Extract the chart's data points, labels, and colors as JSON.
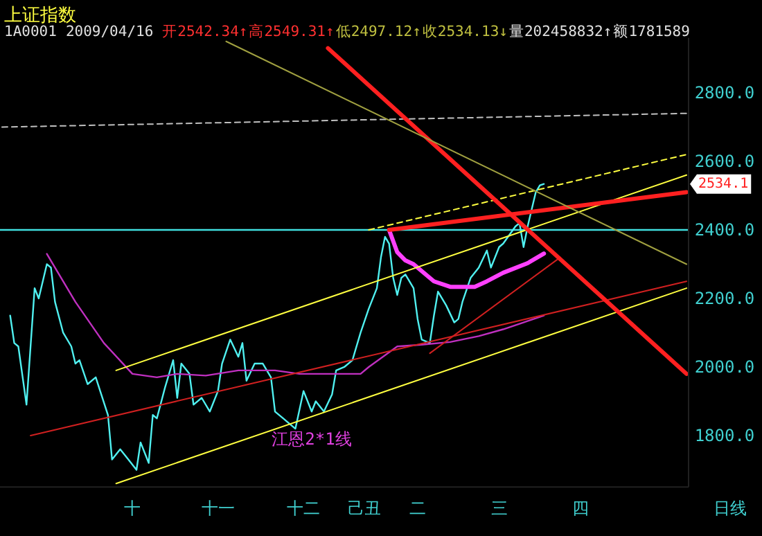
{
  "chart_data": {
    "type": "line",
    "title": "上证指数",
    "annotations": [
      "1A0001",
      "2009/04/16",
      "开2542.34↑",
      "高2549.31↑",
      "低2497.12↑",
      "收2534.13↓",
      "量202458832↑",
      "额1781589",
      "日线",
      "江恩2*1线",
      "2534.1"
    ],
    "categories": [
      null,
      null,
      null,
      null,
      null,
      null,
      null,
      null,
      null,
      null,
      null,
      null,
      null,
      null,
      null,
      null,
      null,
      null,
      null,
      null,
      null,
      null,
      null,
      null,
      null,
      null,
      null,
      null,
      null,
      null,
      null,
      null,
      "十",
      null,
      null,
      null,
      null,
      null,
      null,
      null,
      null,
      null,
      null,
      null,
      null,
      null,
      null,
      null,
      null,
      null,
      null,
      null,
      null,
      "十一",
      null,
      null,
      null,
      null,
      null,
      null,
      null,
      null,
      null,
      null,
      null,
      null,
      null,
      null,
      null,
      null,
      null,
      null,
      null,
      null,
      "十二",
      null,
      null,
      null,
      null,
      null,
      null,
      null,
      null,
      null,
      null,
      null,
      null,
      null,
      null,
      "己丑",
      null,
      null,
      null,
      null,
      null,
      null,
      null,
      null,
      null,
      null,
      null,
      null,
      "二",
      null,
      null,
      null,
      null,
      null,
      null,
      null,
      null,
      null,
      null,
      null,
      null,
      null,
      null,
      null,
      null,
      null,
      null,
      null,
      "三",
      null,
      null,
      null,
      null,
      null,
      null,
      null,
      null,
      null,
      null,
      null,
      null,
      null,
      null,
      null,
      null,
      null,
      null,
      null,
      "四",
      null,
      null,
      null,
      null,
      null,
      null,
      null,
      null,
      null,
      null,
      null,
      null,
      null,
      null,
      null,
      null,
      null,
      null,
      null,
      null,
      null,
      null,
      null,
      null,
      null,
      null
    ],
    "ylim": [
      1650,
      2960
    ],
    "yticks": [
      {
        "value": 1800,
        "label": "1800.0"
      },
      {
        "value": 2000,
        "label": "2000.0"
      },
      {
        "value": 2200,
        "label": "2200.0"
      },
      {
        "value": 2400,
        "label": "2400.0"
      },
      {
        "value": 2600,
        "label": "2600.0"
      },
      {
        "value": 2800,
        "label": "2800.0"
      }
    ],
    "ref_lines": [
      {
        "axis": "y",
        "value": 2400,
        "color": "#40e0e0"
      }
    ],
    "series": [
      {
        "type": "line",
        "color": "#50f0f0",
        "values": [
          null,
          null,
          2150,
          2070,
          2060,
          null,
          1890,
          null,
          2230,
          2200,
          null,
          2300,
          2290,
          2190,
          null,
          2100,
          null,
          2060,
          2010,
          2020,
          null,
          1950,
          null,
          1970,
          null,
          null,
          1860,
          1730,
          null,
          1760,
          null,
          1730,
          null,
          1700,
          1780,
          null,
          1720,
          1860,
          1850,
          null,
          1940,
          null,
          2020,
          1910,
          2010,
          null,
          1980,
          1890,
          null,
          1910,
          null,
          1870,
          null,
          1930,
          2010,
          null,
          2080,
          null,
          2030,
          2070,
          1960,
          null,
          2010,
          null,
          2010,
          null,
          1970,
          1870,
          null,
          1850,
          null,
          null,
          1820,
          null,
          1930,
          null,
          1870,
          1900,
          null,
          1870,
          null,
          1920,
          1990,
          null,
          2000,
          null,
          2020,
          null,
          2100,
          null,
          2170,
          null,
          2230,
          2320,
          2380,
          2360,
          2260,
          2210,
          2260,
          2270,
          null,
          2230,
          2140,
          2080,
          null,
          2070,
          2150,
          2220,
          null,
          2180,
          null,
          2130,
          2140,
          2190,
          null,
          2260,
          null,
          2290,
          null,
          2340,
          2290,
          null,
          2350,
          2360,
          null,
          null,
          2410,
          2420,
          2350,
          2410,
          null,
          2510,
          2530,
          2534,
          null,
          null,
          null,
          null,
          null,
          null,
          null,
          null,
          null,
          null,
          null,
          null,
          null,
          null,
          null,
          null,
          null,
          null,
          null,
          null,
          null,
          null,
          null,
          null,
          null,
          null,
          null,
          null,
          null,
          null,
          null,
          null,
          null,
          null,
          null
        ]
      },
      {
        "type": "line",
        "color": "#c030c0",
        "values": [
          null,
          null,
          null,
          null,
          null,
          null,
          null,
          null,
          null,
          null,
          null,
          2330,
          null,
          null,
          null,
          null,
          null,
          null,
          2190,
          null,
          null,
          null,
          null,
          null,
          null,
          2070,
          null,
          null,
          null,
          null,
          null,
          null,
          1980,
          null,
          null,
          null,
          null,
          null,
          1970,
          null,
          null,
          null,
          null,
          1980,
          null,
          null,
          null,
          null,
          null,
          null,
          1975,
          null,
          null,
          null,
          null,
          null,
          null,
          null,
          1990,
          null,
          null,
          null,
          null,
          null,
          null,
          null,
          null,
          1990,
          null,
          null,
          null,
          null,
          null,
          1980,
          null,
          null,
          null,
          null,
          null,
          null,
          null,
          null,
          null,
          1980,
          null,
          null,
          null,
          null,
          1980,
          null,
          2000,
          null,
          null,
          null,
          null,
          null,
          null,
          2060,
          null,
          null,
          null,
          null,
          null,
          2065,
          null,
          null,
          null,
          null,
          null,
          null,
          2073,
          null,
          null,
          null,
          null,
          null,
          null,
          2090,
          null,
          null,
          null,
          null,
          null,
          2110,
          null,
          null,
          null,
          null,
          2130,
          null,
          null,
          null,
          null,
          2150,
          null,
          null,
          null,
          null,
          null,
          null,
          null,
          null,
          null,
          null,
          null,
          null,
          null,
          null,
          null,
          null,
          null,
          null,
          null,
          null,
          null,
          null,
          null,
          null,
          null,
          null,
          null,
          null,
          null,
          null,
          null,
          null,
          null,
          null,
          null
        ]
      },
      {
        "type": "line",
        "color": "#ff40ff",
        "values": [
          null,
          null,
          null,
          null,
          null,
          null,
          null,
          null,
          null,
          null,
          null,
          null,
          null,
          null,
          null,
          null,
          null,
          null,
          null,
          null,
          null,
          null,
          null,
          null,
          null,
          null,
          null,
          null,
          null,
          null,
          null,
          null,
          null,
          null,
          null,
          null,
          null,
          null,
          null,
          null,
          null,
          null,
          null,
          null,
          null,
          null,
          null,
          null,
          null,
          null,
          null,
          null,
          null,
          null,
          null,
          null,
          null,
          null,
          null,
          null,
          null,
          null,
          null,
          null,
          null,
          null,
          null,
          null,
          null,
          null,
          null,
          null,
          null,
          null,
          null,
          null,
          null,
          null,
          null,
          null,
          null,
          null,
          null,
          null,
          null,
          null,
          null,
          null,
          null,
          null,
          null,
          null,
          null,
          null,
          null,
          2400,
          null,
          2335,
          null,
          2311,
          null,
          2300,
          null,
          null,
          null,
          null,
          2250,
          null,
          null,
          null,
          2234,
          null,
          null,
          null,
          null,
          null,
          2234,
          null,
          null,
          2250,
          null,
          null,
          null,
          2275,
          null,
          null,
          null,
          null,
          null,
          2303,
          null,
          null,
          null,
          2331,
          null,
          null,
          null,
          null,
          null,
          null,
          null,
          null,
          null,
          null,
          null,
          null,
          null,
          null,
          null,
          null,
          null,
          null,
          null,
          null,
          null,
          null,
          null,
          null,
          null,
          null,
          null,
          null,
          null,
          null,
          null,
          null,
          null,
          null,
          null
        ]
      },
      {
        "type": "line",
        "color": "#c0c0c0",
        "line_style": "dashed",
        "values": [
          2700,
          null,
          null,
          null,
          null,
          null,
          null,
          null,
          null,
          null,
          null,
          null,
          null,
          null,
          null,
          null,
          null,
          null,
          null,
          null,
          null,
          null,
          null,
          null,
          null,
          null,
          null,
          null,
          null,
          null,
          null,
          null,
          null,
          null,
          null,
          null,
          null,
          null,
          null,
          null,
          null,
          null,
          null,
          null,
          null,
          null,
          null,
          null,
          null,
          null,
          null,
          null,
          null,
          null,
          null,
          null,
          null,
          null,
          null,
          null,
          null,
          null,
          null,
          null,
          null,
          null,
          null,
          null,
          null,
          null,
          null,
          null,
          null,
          null,
          null,
          null,
          null,
          null,
          null,
          null,
          null,
          null,
          null,
          null,
          null,
          null,
          null,
          null,
          null,
          null,
          null,
          null,
          null,
          null,
          null,
          null,
          null,
          null,
          null,
          null,
          null,
          null,
          null,
          null,
          null,
          null,
          null,
          null,
          null,
          null,
          null,
          null,
          null,
          null,
          null,
          null,
          null,
          null,
          null,
          null,
          null,
          null,
          null,
          null,
          null,
          null,
          null,
          null,
          null,
          null,
          null,
          null,
          null,
          null,
          null,
          null,
          null,
          null,
          null,
          null,
          null,
          null,
          null,
          null,
          null,
          null,
          null,
          null,
          null,
          null,
          null,
          null,
          null,
          null,
          null,
          null,
          null,
          null,
          null,
          null,
          null,
          null,
          null,
          null,
          null,
          null,
          null,
          null,
          2740
        ]
      },
      {
        "type": "line",
        "color": "#ffff40",
        "line_style": "dashed",
        "values": [
          null,
          null,
          null,
          null,
          null,
          null,
          null,
          null,
          null,
          null,
          null,
          null,
          null,
          null,
          null,
          null,
          null,
          null,
          null,
          null,
          null,
          null,
          null,
          null,
          null,
          null,
          null,
          null,
          null,
          null,
          null,
          null,
          null,
          null,
          null,
          null,
          null,
          null,
          null,
          null,
          null,
          null,
          null,
          null,
          null,
          null,
          null,
          null,
          null,
          null,
          null,
          null,
          null,
          null,
          null,
          null,
          null,
          null,
          null,
          null,
          null,
          null,
          null,
          null,
          null,
          null,
          null,
          null,
          null,
          null,
          null,
          null,
          null,
          null,
          null,
          null,
          null,
          null,
          null,
          null,
          null,
          null,
          null,
          null,
          null,
          null,
          null,
          null,
          null,
          null,
          2400,
          null,
          null,
          null,
          null,
          null,
          null,
          null,
          null,
          null,
          null,
          null,
          null,
          null,
          null,
          null,
          null,
          null,
          null,
          null,
          null,
          null,
          null,
          null,
          null,
          null,
          null,
          null,
          null,
          null,
          null,
          null,
          null,
          null,
          null,
          null,
          null,
          null,
          null,
          null,
          null,
          null,
          null,
          null,
          null,
          null,
          null,
          null,
          null,
          null,
          null,
          null,
          null,
          null,
          null,
          null,
          null,
          null,
          null,
          null,
          null,
          null,
          null,
          null,
          null,
          null,
          null,
          null,
          null,
          null,
          null,
          null,
          null,
          null,
          null,
          null,
          null,
          null,
          2620
        ]
      },
      {
        "type": "line",
        "color": "#ffff40",
        "values": [
          null,
          null,
          null,
          null,
          null,
          null,
          null,
          null,
          null,
          null,
          null,
          null,
          null,
          null,
          null,
          null,
          null,
          null,
          null,
          null,
          null,
          null,
          null,
          null,
          null,
          null,
          null,
          null,
          1990,
          null,
          null,
          null,
          null,
          null,
          null,
          null,
          null,
          null,
          null,
          null,
          null,
          null,
          null,
          null,
          null,
          null,
          null,
          null,
          null,
          null,
          null,
          null,
          null,
          null,
          null,
          null,
          null,
          null,
          null,
          null,
          null,
          null,
          null,
          null,
          null,
          null,
          null,
          null,
          null,
          null,
          null,
          null,
          null,
          null,
          null,
          null,
          null,
          null,
          null,
          null,
          null,
          null,
          null,
          null,
          null,
          null,
          null,
          null,
          null,
          null,
          null,
          null,
          null,
          null,
          null,
          null,
          null,
          null,
          null,
          null,
          null,
          null,
          null,
          null,
          null,
          null,
          null,
          null,
          null,
          null,
          null,
          null,
          null,
          null,
          null,
          null,
          null,
          null,
          null,
          null,
          null,
          null,
          null,
          null,
          null,
          null,
          null,
          null,
          null,
          null,
          null,
          null,
          null,
          null,
          null,
          null,
          null,
          null,
          null,
          null,
          null,
          null,
          null,
          null,
          null,
          null,
          null,
          null,
          null,
          null,
          null,
          null,
          null,
          null,
          null,
          null,
          null,
          null,
          null,
          null,
          null,
          null,
          null,
          null,
          null,
          null,
          null,
          null,
          2560
        ]
      },
      {
        "type": "line",
        "color": "#ffff40",
        "values": [
          null,
          null,
          null,
          null,
          null,
          null,
          null,
          null,
          null,
          null,
          null,
          null,
          null,
          null,
          null,
          null,
          null,
          null,
          null,
          null,
          null,
          null,
          null,
          null,
          null,
          null,
          null,
          null,
          1660,
          null,
          null,
          null,
          null,
          null,
          null,
          null,
          null,
          null,
          null,
          null,
          null,
          null,
          null,
          null,
          null,
          null,
          null,
          null,
          null,
          null,
          null,
          null,
          null,
          null,
          null,
          null,
          null,
          null,
          null,
          null,
          null,
          null,
          null,
          null,
          null,
          null,
          null,
          null,
          null,
          null,
          null,
          null,
          null,
          null,
          null,
          null,
          null,
          null,
          null,
          null,
          null,
          null,
          null,
          null,
          null,
          null,
          null,
          null,
          null,
          null,
          null,
          null,
          null,
          null,
          null,
          null,
          null,
          null,
          null,
          null,
          null,
          null,
          null,
          null,
          null,
          null,
          null,
          null,
          null,
          null,
          null,
          null,
          null,
          null,
          null,
          null,
          null,
          null,
          null,
          null,
          null,
          null,
          null,
          null,
          null,
          null,
          null,
          null,
          null,
          null,
          null,
          null,
          null,
          null,
          null,
          null,
          null,
          null,
          null,
          null,
          null,
          null,
          null,
          null,
          null,
          null,
          null,
          null,
          null,
          null,
          null,
          null,
          null,
          null,
          null,
          null,
          null,
          null,
          null,
          null,
          null,
          null,
          null,
          null,
          null,
          null,
          null,
          null,
          2230
        ]
      },
      {
        "type": "line",
        "color": "#d02020",
        "values": [
          null,
          null,
          null,
          null,
          null,
          null,
          null,
          1800,
          null,
          null,
          null,
          null,
          null,
          null,
          null,
          null,
          null,
          null,
          null,
          null,
          null,
          null,
          null,
          null,
          null,
          null,
          null,
          null,
          null,
          null,
          null,
          null,
          null,
          null,
          null,
          null,
          null,
          null,
          null,
          null,
          null,
          null,
          null,
          null,
          null,
          null,
          null,
          null,
          null,
          null,
          null,
          null,
          null,
          null,
          null,
          null,
          null,
          null,
          null,
          null,
          null,
          null,
          null,
          null,
          null,
          null,
          null,
          null,
          null,
          null,
          null,
          null,
          null,
          null,
          null,
          null,
          null,
          null,
          null,
          null,
          null,
          null,
          null,
          null,
          null,
          null,
          null,
          null,
          null,
          null,
          null,
          null,
          null,
          null,
          null,
          null,
          null,
          null,
          null,
          null,
          null,
          null,
          null,
          null,
          null,
          null,
          null,
          null,
          null,
          null,
          null,
          null,
          null,
          null,
          null,
          null,
          null,
          null,
          null,
          null,
          null,
          null,
          null,
          null,
          null,
          null,
          null,
          null,
          null,
          null,
          null,
          null,
          null,
          null,
          null,
          null,
          null,
          null,
          null,
          null,
          null,
          null,
          null,
          null,
          null,
          null,
          null,
          null,
          null,
          null,
          null,
          null,
          null,
          null,
          null,
          null,
          null,
          null,
          null,
          null,
          null,
          null,
          null,
          null,
          null,
          null,
          null,
          null,
          2250
        ]
      },
      {
        "type": "line",
        "color": "#d02020",
        "values": [
          null,
          null,
          null,
          null,
          null,
          null,
          null,
          null,
          null,
          null,
          null,
          null,
          null,
          null,
          null,
          null,
          null,
          null,
          null,
          null,
          null,
          null,
          null,
          null,
          null,
          null,
          null,
          null,
          null,
          null,
          null,
          null,
          null,
          null,
          null,
          null,
          null,
          null,
          null,
          null,
          null,
          null,
          null,
          null,
          null,
          null,
          null,
          null,
          null,
          null,
          null,
          null,
          null,
          null,
          null,
          null,
          null,
          null,
          null,
          null,
          null,
          null,
          null,
          null,
          null,
          null,
          null,
          null,
          null,
          null,
          null,
          null,
          null,
          null,
          null,
          null,
          null,
          null,
          null,
          null,
          null,
          null,
          null,
          null,
          null,
          null,
          null,
          null,
          null,
          null,
          null,
          null,
          null,
          null,
          null,
          null,
          null,
          null,
          null,
          null,
          null,
          null,
          null,
          null,
          null,
          2040,
          null,
          null,
          null,
          null,
          null,
          null,
          null,
          null,
          null,
          null,
          null,
          null,
          null,
          null,
          null,
          null,
          null,
          null,
          null,
          null,
          null,
          null,
          null,
          null,
          null,
          null,
          null,
          null,
          null,
          null,
          null,
          2320,
          null,
          null,
          null,
          null,
          null,
          null,
          null,
          null,
          null,
          null,
          null,
          null,
          null,
          null,
          null,
          null,
          null,
          null,
          null,
          null,
          null,
          null,
          null,
          null,
          null,
          null,
          null,
          null,
          null,
          null,
          null
        ]
      },
      {
        "type": "line",
        "color": "#ff2020",
        "values": [
          null,
          null,
          null,
          null,
          null,
          null,
          null,
          null,
          null,
          null,
          null,
          null,
          null,
          null,
          null,
          null,
          null,
          null,
          null,
          null,
          null,
          null,
          null,
          null,
          null,
          null,
          null,
          null,
          null,
          null,
          null,
          null,
          null,
          null,
          null,
          null,
          null,
          null,
          null,
          null,
          null,
          null,
          null,
          null,
          null,
          null,
          null,
          null,
          null,
          null,
          null,
          null,
          null,
          null,
          null,
          null,
          null,
          null,
          null,
          null,
          null,
          null,
          null,
          null,
          null,
          null,
          null,
          null,
          null,
          null,
          null,
          null,
          null,
          null,
          null,
          null,
          null,
          null,
          null,
          null,
          null,
          null,
          null,
          null,
          null,
          null,
          null,
          null,
          null,
          null,
          null,
          null,
          null,
          null,
          null,
          2400,
          null,
          null,
          null,
          null,
          null,
          null,
          null,
          null,
          null,
          null,
          null,
          null,
          null,
          null,
          null,
          null,
          null,
          null,
          null,
          null,
          null,
          null,
          null,
          null,
          null,
          null,
          null,
          null,
          null,
          null,
          null,
          null,
          null,
          null,
          null,
          null,
          null,
          null,
          null,
          null,
          null,
          null,
          null,
          null,
          null,
          null,
          null,
          null,
          null,
          null,
          null,
          null,
          null,
          null,
          null,
          null,
          null,
          null,
          null,
          null,
          null,
          null,
          null,
          null,
          null,
          null,
          null,
          null,
          null,
          null,
          null,
          null,
          2510
        ]
      },
      {
        "type": "line",
        "color": "#ff2020",
        "values": [
          null,
          null,
          null,
          null,
          null,
          null,
          null,
          null,
          null,
          null,
          null,
          null,
          null,
          null,
          null,
          null,
          null,
          null,
          null,
          null,
          null,
          null,
          null,
          null,
          null,
          null,
          null,
          null,
          null,
          null,
          null,
          null,
          null,
          null,
          null,
          null,
          null,
          null,
          null,
          null,
          null,
          null,
          null,
          null,
          null,
          null,
          null,
          null,
          null,
          null,
          null,
          null,
          null,
          null,
          null,
          null,
          null,
          null,
          null,
          null,
          null,
          null,
          null,
          null,
          null,
          null,
          null,
          null,
          null,
          null,
          null,
          null,
          null,
          null,
          null,
          null,
          null,
          null,
          null,
          null,
          2930,
          null,
          null,
          null,
          null,
          null,
          null,
          null,
          null,
          null,
          null,
          null,
          null,
          null,
          null,
          null,
          null,
          null,
          null,
          null,
          null,
          null,
          null,
          null,
          null,
          null,
          null,
          null,
          null,
          null,
          null,
          null,
          null,
          null,
          null,
          null,
          null,
          null,
          null,
          null,
          null,
          null,
          null,
          null,
          null,
          null,
          null,
          null,
          null,
          null,
          null,
          null,
          null,
          null,
          null,
          null,
          null,
          null,
          null,
          null,
          null,
          null,
          null,
          null,
          null,
          null,
          null,
          null,
          null,
          null,
          null,
          null,
          null,
          null,
          null,
          null,
          null,
          null,
          null,
          null,
          null,
          null,
          null,
          null,
          null,
          null,
          null,
          null,
          1980
        ]
      },
      {
        "type": "line",
        "color": "#a0a040",
        "values": [
          null,
          null,
          null,
          null,
          null,
          null,
          null,
          null,
          null,
          null,
          null,
          null,
          null,
          null,
          null,
          null,
          null,
          null,
          null,
          null,
          null,
          null,
          null,
          null,
          null,
          null,
          null,
          null,
          null,
          null,
          null,
          null,
          null,
          null,
          null,
          null,
          null,
          null,
          null,
          null,
          null,
          null,
          null,
          null,
          null,
          null,
          null,
          null,
          null,
          null,
          null,
          null,
          null,
          null,
          null,
          2950,
          null,
          null,
          null,
          null,
          null,
          null,
          null,
          null,
          null,
          null,
          null,
          null,
          null,
          null,
          null,
          null,
          null,
          null,
          null,
          null,
          null,
          null,
          null,
          null,
          null,
          null,
          null,
          null,
          null,
          null,
          null,
          null,
          null,
          null,
          null,
          null,
          null,
          null,
          null,
          null,
          null,
          null,
          null,
          null,
          null,
          null,
          null,
          null,
          null,
          null,
          null,
          null,
          null,
          null,
          null,
          null,
          null,
          null,
          null,
          null,
          null,
          null,
          null,
          null,
          null,
          null,
          null,
          null,
          null,
          null,
          null,
          null,
          null,
          null,
          null,
          null,
          null,
          null,
          null,
          null,
          null,
          null,
          null,
          null,
          null,
          null,
          null,
          null,
          null,
          null,
          null,
          null,
          null,
          null,
          null,
          null,
          null,
          null,
          null,
          null,
          null,
          null,
          null,
          null,
          null,
          null,
          null,
          null,
          null,
          null,
          null,
          null,
          2300
        ]
      }
    ]
  }
}
